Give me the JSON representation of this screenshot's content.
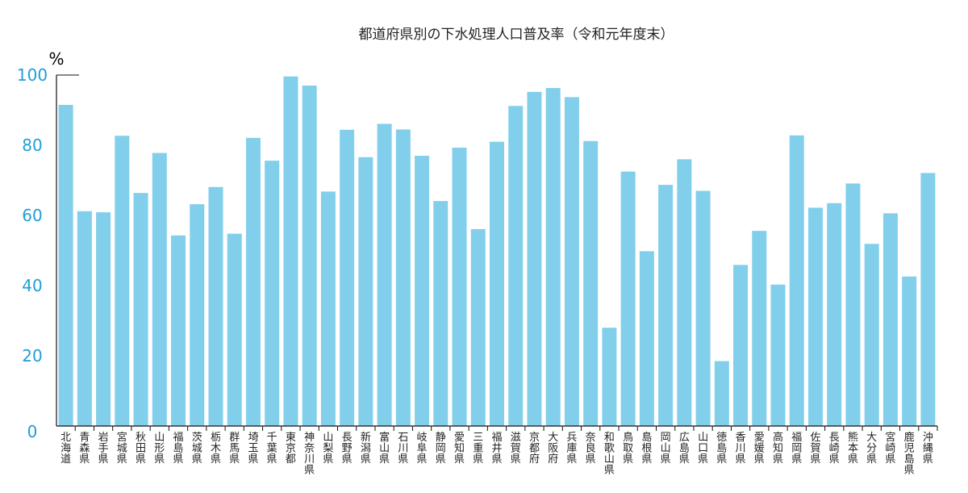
{
  "chart_data": {
    "type": "bar",
    "title": "都道府県別の下水処理人口普及率（令和元年度末）",
    "ylabel": "%",
    "xlabel": "",
    "ylim": [
      0,
      100
    ],
    "yticks": [
      "0",
      "20",
      "40",
      "60",
      "80",
      "100"
    ],
    "grid": false,
    "categories": [
      "北海道",
      "青森県",
      "岩手県",
      "宮城県",
      "秋田県",
      "山形県",
      "福島県",
      "茨城県",
      "栃木県",
      "群馬県",
      "埼玉県",
      "千葉県",
      "東京都",
      "神奈川県",
      "山梨県",
      "長野県",
      "新潟県",
      "富山県",
      "石川県",
      "岐阜県",
      "静岡県",
      "愛知県",
      "三重県",
      "福井県",
      "滋賀県",
      "京都府",
      "大阪府",
      "兵庫県",
      "奈良県",
      "和歌山県",
      "鳥取県",
      "島根県",
      "岡山県",
      "広島県",
      "山口県",
      "徳島県",
      "香川県",
      "愛媛県",
      "高知県",
      "福岡県",
      "佐賀県",
      "長崎県",
      "熊本県",
      "大分県",
      "宮崎県",
      "鹿児島県",
      "沖縄県"
    ],
    "values": [
      91.5,
      61.2,
      60.9,
      82.7,
      66.4,
      77.8,
      54.3,
      63.2,
      68.1,
      54.8,
      82.1,
      75.6,
      99.6,
      97.0,
      66.8,
      84.4,
      76.6,
      86.1,
      84.5,
      77.0,
      64.1,
      79.3,
      56.1,
      81.0,
      91.2,
      95.2,
      96.3,
      93.7,
      81.2,
      28.0,
      72.5,
      49.8,
      68.7,
      76.0,
      67.0,
      18.5,
      45.9,
      55.6,
      40.3,
      82.8,
      62.2,
      63.5,
      69.1,
      51.9,
      60.6,
      42.6,
      72.1
    ],
    "colors": {
      "bar": "#82cfeb",
      "axis": "#111111",
      "tick_label": "#1f9ed6"
    }
  }
}
